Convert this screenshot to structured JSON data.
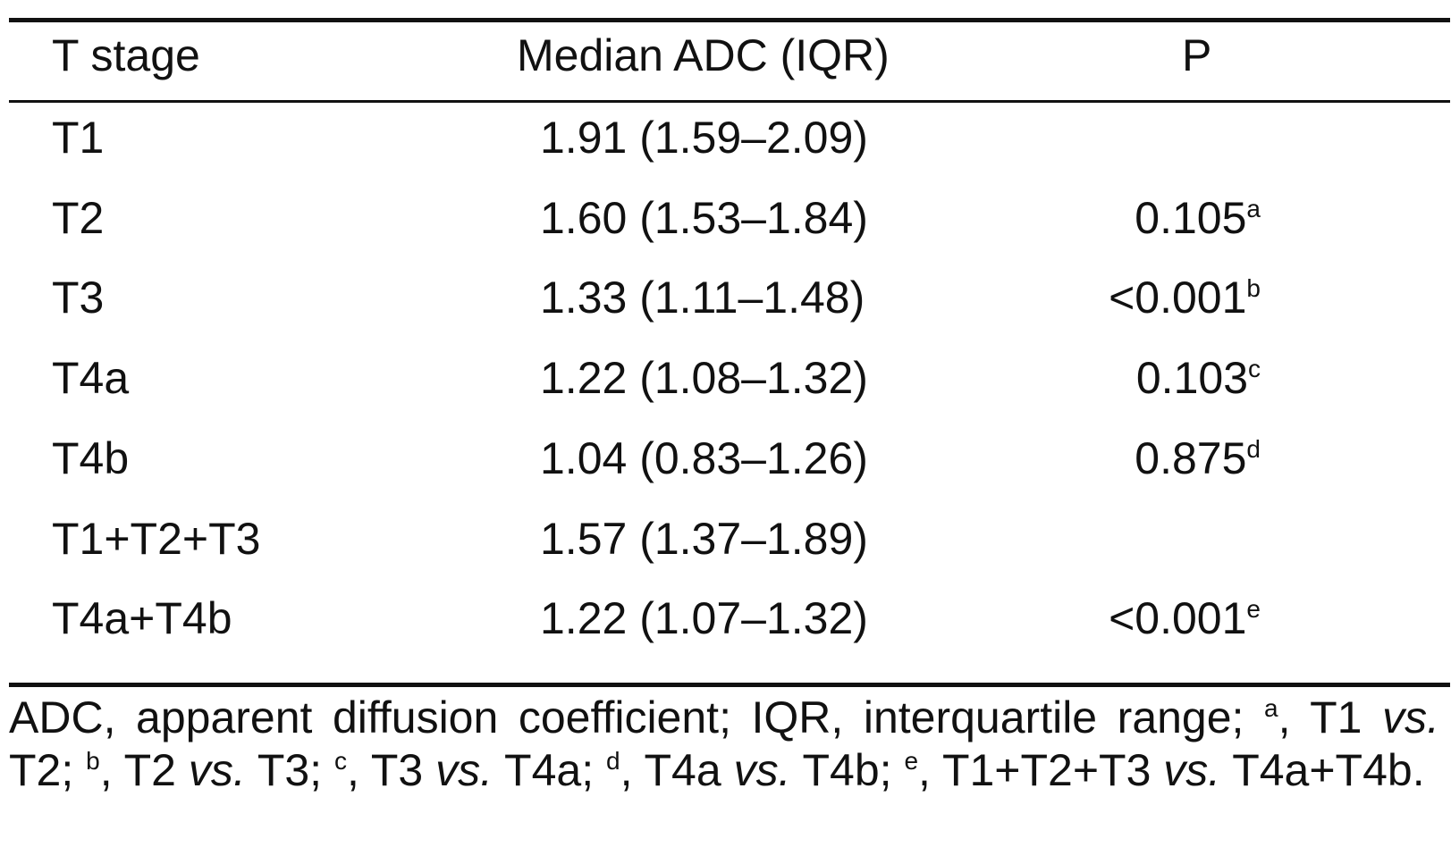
{
  "table": {
    "headers": {
      "stage": "T stage",
      "adc": "Median ADC (IQR)",
      "p": "P"
    },
    "rows": [
      {
        "stage": "T1",
        "adc": "1.91 (1.59–2.09)",
        "p": "",
        "mark": ""
      },
      {
        "stage": "T2",
        "adc": "1.60 (1.53–1.84)",
        "p": "0.105",
        "mark": "a"
      },
      {
        "stage": "T3",
        "adc": "1.33 (1.11–1.48)",
        "p": "<0.001",
        "mark": "b"
      },
      {
        "stage": "T4a",
        "adc": "1.22 (1.08–1.32)",
        "p": "0.103",
        "mark": "c"
      },
      {
        "stage": "T4b",
        "adc": "1.04 (0.83–1.26)",
        "p": "0.875",
        "mark": "d"
      },
      {
        "stage": "T1+T2+T3",
        "adc": "1.57 (1.37–1.89)",
        "p": "",
        "mark": ""
      },
      {
        "stage": "T4a+T4b",
        "adc": "1.22 (1.07–1.32)",
        "p": "<0.001",
        "mark": "e"
      }
    ]
  },
  "footnote": {
    "abbrev": "ADC, apparent diffusion coefficient; IQR, interquartile range;",
    "items": [
      {
        "mark": "a",
        "left": "T1",
        "vs": "vs.",
        "right": "T2"
      },
      {
        "mark": "b",
        "left": "T2",
        "vs": "vs.",
        "right": "T3"
      },
      {
        "mark": "c",
        "left": "T3",
        "vs": "vs.",
        "right": "T4a"
      },
      {
        "mark": "d",
        "left": "T4a",
        "vs": "vs.",
        "right": "T4b"
      },
      {
        "mark": "e",
        "left": "T1+T2+T3",
        "vs": "vs.",
        "right": "T4a+T4b"
      }
    ]
  }
}
